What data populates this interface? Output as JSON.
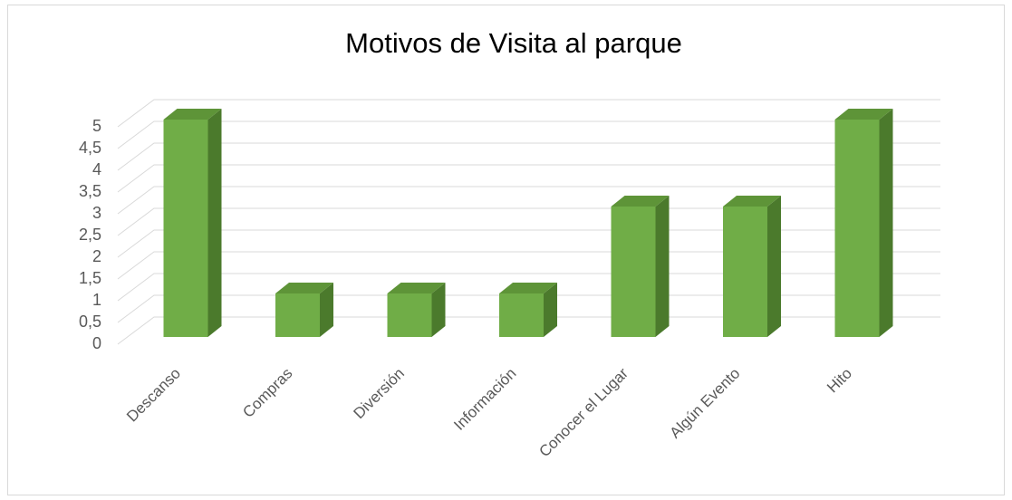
{
  "chart_data": {
    "type": "bar3d",
    "title": "Motivos de Visita al parque",
    "categories": [
      "Descanso",
      "Compras",
      "Diversión",
      "Información",
      "Conocer el Lugar",
      "Algún Evento",
      "Hito"
    ],
    "values": [
      5,
      1,
      1,
      1,
      3,
      3,
      5
    ],
    "color": "#70ad47",
    "ylim": [
      0,
      5
    ],
    "yticks": [
      0,
      {
        "value": 0.5,
        "label": "0,5"
      },
      1,
      {
        "value": 1.5,
        "label": "1,5"
      },
      2,
      {
        "value": 2.5,
        "label": "2,5"
      },
      3,
      {
        "value": 3.5,
        "label": "3,5"
      },
      4,
      {
        "value": 4.5,
        "label": "4,5"
      },
      5
    ],
    "grid": true
  }
}
